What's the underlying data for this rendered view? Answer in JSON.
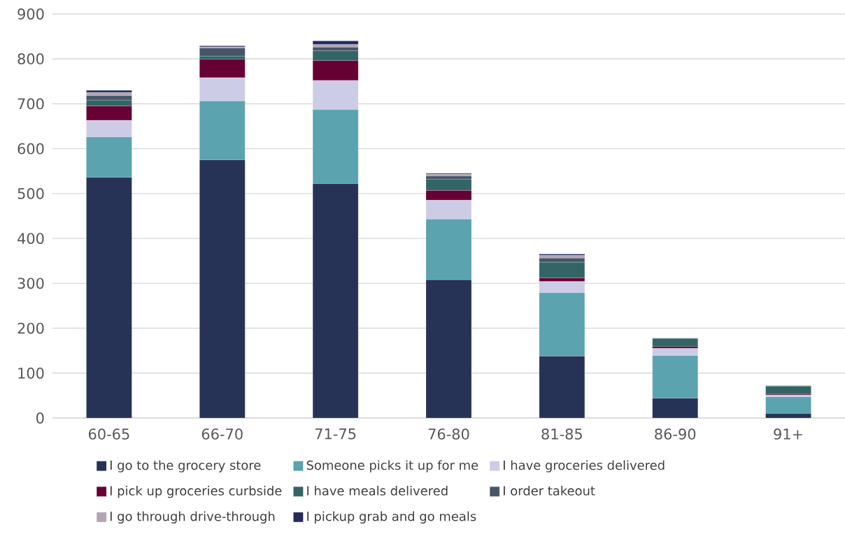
{
  "chart_data": {
    "type": "bar",
    "stacked": true,
    "categories": [
      "60-65",
      "66-70",
      "71-75",
      "76-80",
      "81-85",
      "86-90",
      "91+"
    ],
    "series": [
      {
        "name": "I go to the grocery store",
        "color": "#263356",
        "values": [
          536,
          575,
          522,
          308,
          138,
          44,
          10
        ]
      },
      {
        "name": "Someone picks it up for me",
        "color": "#5ba3ae",
        "values": [
          90,
          131,
          165,
          135,
          141,
          95,
          37
        ]
      },
      {
        "name": "I have groceries delivered",
        "color": "#cccce6",
        "values": [
          37,
          52,
          65,
          42,
          25,
          16,
          4
        ]
      },
      {
        "name": "I pick up groceries curbside",
        "color": "#670033",
        "values": [
          32,
          41,
          44,
          22,
          8,
          4,
          2
        ]
      },
      {
        "name": "I have meals delivered",
        "color": "#336566",
        "values": [
          13,
          7,
          22,
          25,
          35,
          18,
          18
        ]
      },
      {
        "name": "I order takeout",
        "color": "#475569",
        "values": [
          10,
          18,
          8,
          7,
          9,
          1,
          1
        ]
      },
      {
        "name": "I go through drive-through",
        "color": "#b2a6b4",
        "values": [
          7,
          3,
          6,
          4,
          6,
          0,
          0
        ]
      },
      {
        "name": "I pickup grab and go meals",
        "color": "#262b5c",
        "values": [
          5,
          2,
          8,
          2,
          3,
          0,
          0
        ]
      }
    ],
    "ylim": [
      0,
      900
    ],
    "yticks": [
      0,
      100,
      200,
      300,
      400,
      500,
      600,
      700,
      800,
      900
    ],
    "grid": "y",
    "legend": "bottom"
  }
}
